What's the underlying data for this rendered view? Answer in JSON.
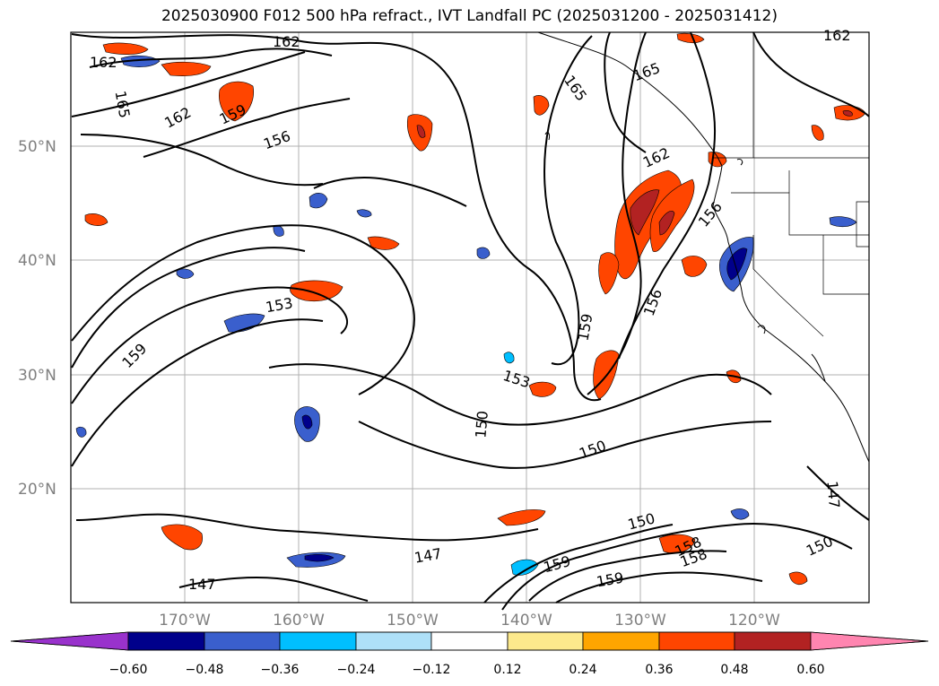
{
  "title": "2025030900 F012 500 hPa refract., IVT Landfall PC (2025031200 - 2025031412)",
  "lat_labels": [
    "50°N",
    "40°N",
    "30°N",
    "20°N"
  ],
  "lon_labels": [
    "170°W",
    "160°W",
    "150°W",
    "140°W",
    "130°W",
    "120°W"
  ],
  "contour_labels": [
    "162",
    "162",
    "162",
    "165",
    "165",
    "165",
    "162",
    "159",
    "156",
    "162",
    "156",
    "153",
    "159",
    "159",
    "156",
    "153",
    "150",
    "150",
    "150",
    "147",
    "147",
    "147",
    "150",
    "158",
    "159",
    "159",
    "158"
  ],
  "colorbar": {
    "ticks": [
      "−0.60",
      "−0.48",
      "−0.36",
      "−0.24",
      "−0.12",
      "0.12",
      "0.24",
      "0.36",
      "0.48",
      "0.60"
    ],
    "colors": [
      "#9932cc",
      "#00008b",
      "#3a5fcd",
      "#00bfff",
      "#aee0f8",
      "#ffffff",
      "#fce98c",
      "#ffa500",
      "#ff4500",
      "#b22222",
      "#ff85b0"
    ]
  },
  "colors": {
    "contour": "#000000",
    "grid": "#b0b0b0",
    "coast": "#000000",
    "border": "#000000"
  }
}
